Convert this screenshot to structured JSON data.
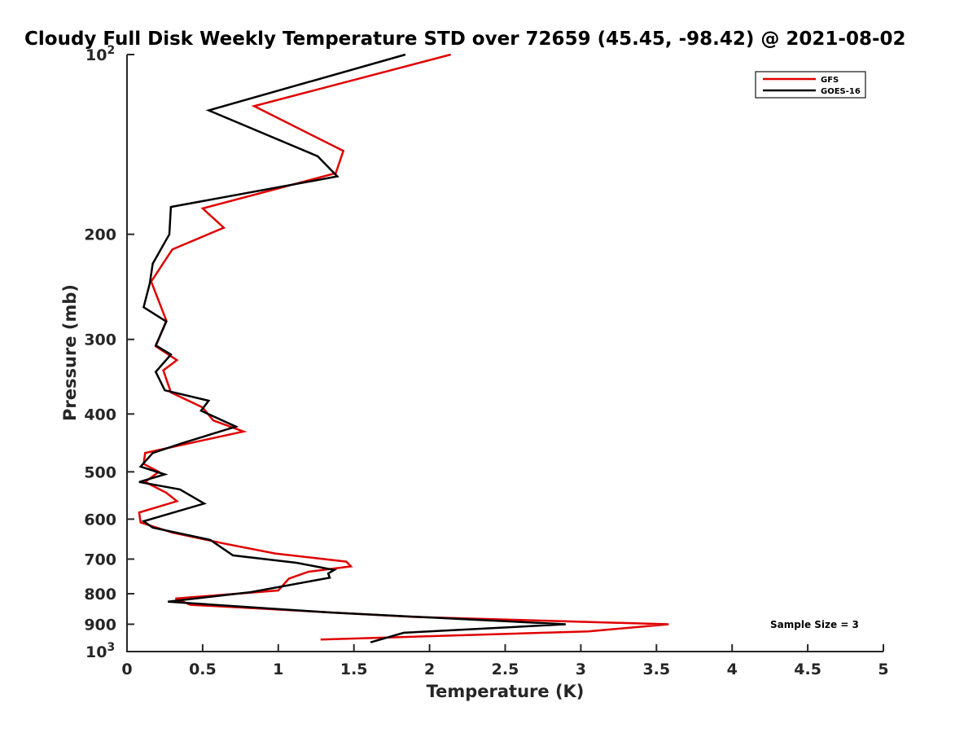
{
  "chart_data": {
    "type": "line",
    "title": "Cloudy Full Disk Weekly Temperature STD over 72659 (45.45, -98.42) @ 2021-08-02",
    "xlabel": "Temperature (K)",
    "ylabel": "Pressure (mb)",
    "xlim": [
      0,
      5
    ],
    "ylim": [
      100,
      1000
    ],
    "y_scale": "log",
    "y_reversed": true,
    "grid": false,
    "legend_position": "top-right",
    "x_ticks": [
      {
        "value": 0,
        "label": "0"
      },
      {
        "value": 0.5,
        "label": "0.5"
      },
      {
        "value": 1,
        "label": "1"
      },
      {
        "value": 1.5,
        "label": "1.5"
      },
      {
        "value": 2,
        "label": "2"
      },
      {
        "value": 2.5,
        "label": "2.5"
      },
      {
        "value": 3,
        "label": "3"
      },
      {
        "value": 3.5,
        "label": "3.5"
      },
      {
        "value": 4,
        "label": "4"
      },
      {
        "value": 4.5,
        "label": "4.5"
      },
      {
        "value": 5,
        "label": "5"
      }
    ],
    "y_ticks": [
      {
        "value": 200,
        "label": "200"
      },
      {
        "value": 300,
        "label": "300"
      },
      {
        "value": 400,
        "label": "400"
      },
      {
        "value": 500,
        "label": "500"
      },
      {
        "value": 600,
        "label": "600"
      },
      {
        "value": 700,
        "label": "700"
      },
      {
        "value": 800,
        "label": "800"
      },
      {
        "value": 900,
        "label": "900"
      }
    ],
    "y_end_ticks": [
      {
        "value": 100,
        "base": "10",
        "exp": "2"
      },
      {
        "value": 1000,
        "base": "10",
        "exp": "3"
      }
    ],
    "series": [
      {
        "name": "GFS",
        "color": "#e00000",
        "points": [
          [
            2.14,
            100
          ],
          [
            0.84,
            122
          ],
          [
            1.43,
            145
          ],
          [
            1.38,
            158
          ],
          [
            0.5,
            181
          ],
          [
            0.64,
            195
          ],
          [
            0.3,
            212
          ],
          [
            0.16,
            240
          ],
          [
            0.2,
            255
          ],
          [
            0.26,
            279
          ],
          [
            0.19,
            308
          ],
          [
            0.33,
            325
          ],
          [
            0.24,
            338
          ],
          [
            0.29,
            368
          ],
          [
            0.5,
            390
          ],
          [
            0.57,
            410
          ],
          [
            0.77,
            428
          ],
          [
            0.55,
            440
          ],
          [
            0.12,
            465
          ],
          [
            0.11,
            485
          ],
          [
            0.21,
            500
          ],
          [
            0.12,
            520
          ],
          [
            0.26,
            542
          ],
          [
            0.33,
            560
          ],
          [
            0.08,
            585
          ],
          [
            0.09,
            608
          ],
          [
            0.3,
            632
          ],
          [
            0.65,
            660
          ],
          [
            0.98,
            685
          ],
          [
            1.45,
            707
          ],
          [
            1.48,
            720
          ],
          [
            1.2,
            735
          ],
          [
            1.07,
            755
          ],
          [
            1.0,
            790
          ],
          [
            0.32,
            815
          ],
          [
            0.42,
            835
          ],
          [
            1.9,
            875
          ],
          [
            3.58,
            900
          ],
          [
            3.05,
            925
          ],
          [
            1.28,
            955
          ]
        ]
      },
      {
        "name": "GOES-16",
        "color": "#000000",
        "points": [
          [
            1.84,
            100
          ],
          [
            0.54,
            124
          ],
          [
            1.26,
            148
          ],
          [
            1.39,
            160
          ],
          [
            0.29,
            180
          ],
          [
            0.28,
            200
          ],
          [
            0.17,
            224
          ],
          [
            0.15,
            242
          ],
          [
            0.11,
            265
          ],
          [
            0.26,
            280
          ],
          [
            0.19,
            307
          ],
          [
            0.29,
            318
          ],
          [
            0.19,
            340
          ],
          [
            0.25,
            365
          ],
          [
            0.54,
            380
          ],
          [
            0.49,
            395
          ],
          [
            0.72,
            420
          ],
          [
            0.36,
            448
          ],
          [
            0.17,
            465
          ],
          [
            0.09,
            490
          ],
          [
            0.25,
            505
          ],
          [
            0.08,
            520
          ],
          [
            0.35,
            535
          ],
          [
            0.51,
            565
          ],
          [
            0.11,
            605
          ],
          [
            0.17,
            620
          ],
          [
            0.55,
            650
          ],
          [
            0.7,
            690
          ],
          [
            1.12,
            710
          ],
          [
            1.37,
            730
          ],
          [
            1.33,
            740
          ],
          [
            1.34,
            752
          ],
          [
            0.82,
            795
          ],
          [
            0.27,
            825
          ],
          [
            1.34,
            860
          ],
          [
            2.9,
            900
          ],
          [
            1.83,
            930
          ],
          [
            1.61,
            965
          ]
        ]
      }
    ],
    "annotation": "Sample Size = 3"
  }
}
